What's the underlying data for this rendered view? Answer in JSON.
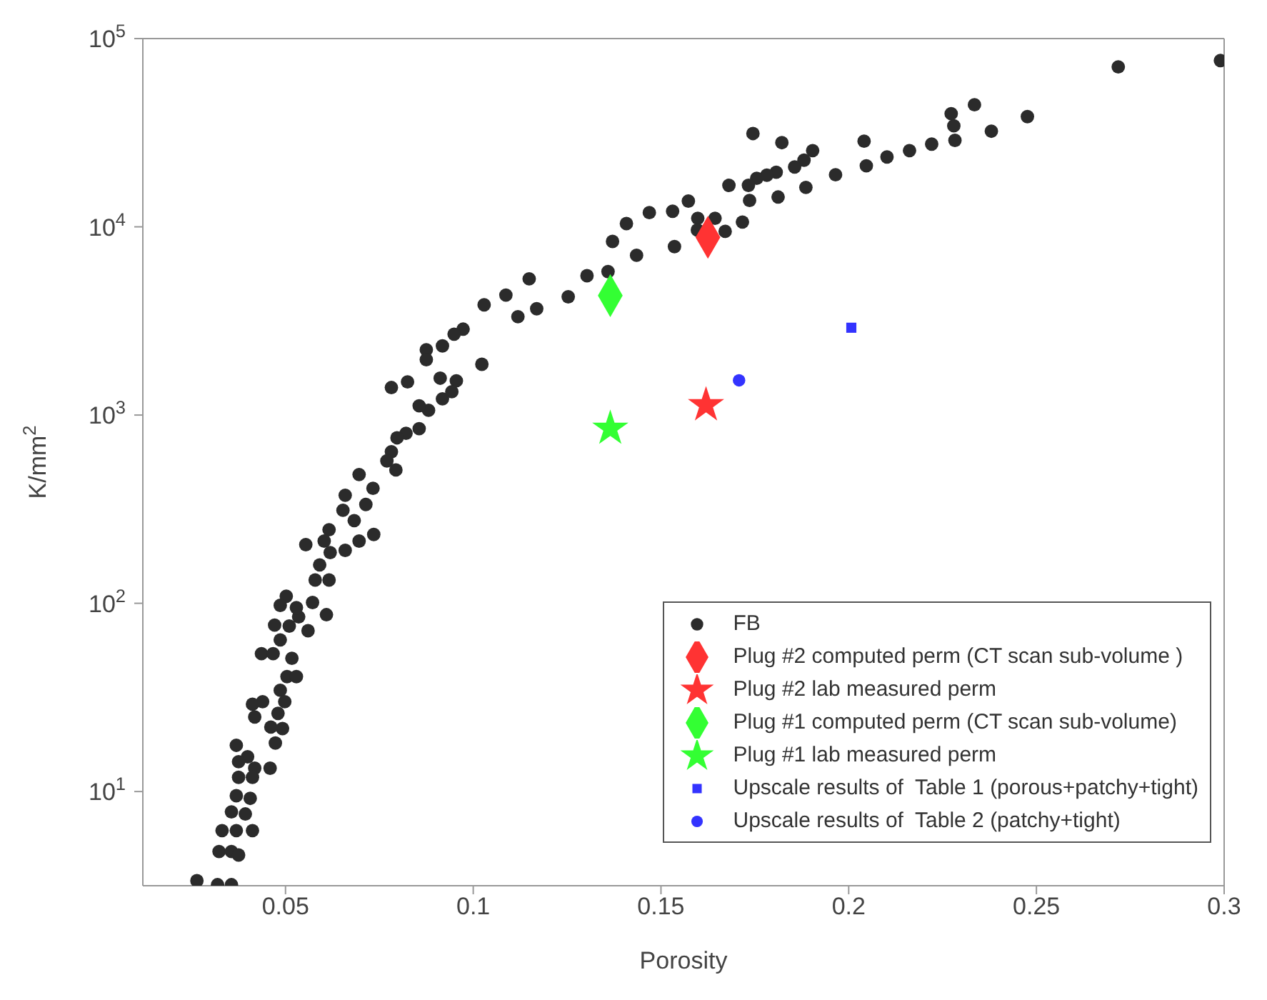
{
  "chart_data": {
    "type": "scatter",
    "xlabel": "Porosity",
    "ylabel": "K/mm$^{2}$",
    "log": "y",
    "xlim": [
      0.012,
      0.3
    ],
    "xticks": [
      0.05,
      0.1,
      0.15,
      0.2,
      0.25,
      0.3
    ],
    "ylim": [
      3.16,
      100000
    ],
    "yticks": [
      {
        "value": 10,
        "label": "10$^{1}$"
      },
      {
        "value": 100,
        "label": "10$^{2}$"
      },
      {
        "value": 1000,
        "label": "10$^{3}$"
      },
      {
        "value": 10000,
        "label": "10$^{4}$"
      },
      {
        "value": 100000,
        "label": "10$^{5}$"
      }
    ],
    "grid": false,
    "legend": "bottom right",
    "series": [
      {
        "name": "FB",
        "color": "#2b2b2b",
        "marker": "circle",
        "x": [
          0.2718,
          0.299,
          0.2335,
          0.2273,
          0.228,
          0.2283,
          0.2476,
          0.238,
          0.2221,
          0.2162,
          0.2102,
          0.2041,
          0.2047,
          0.1965,
          0.1886,
          0.1904,
          0.1881,
          0.1856,
          0.1807,
          0.1782,
          0.1755,
          0.1733,
          0.1736,
          0.1812,
          0.1822,
          0.1745,
          0.1681,
          0.1717,
          0.1671,
          0.1644,
          0.1598,
          0.1597,
          0.1573,
          0.1531,
          0.1536,
          0.1469,
          0.1435,
          0.1408,
          0.1371,
          0.1359,
          0.1303,
          0.1253,
          0.1149,
          0.1169,
          0.1119,
          0.1087,
          0.1029,
          0.1023,
          0.0973,
          0.0949,
          0.0918,
          0.0875,
          0.0875,
          0.0912,
          0.0955,
          0.0825,
          0.0782,
          0.0943,
          0.0918,
          0.0881,
          0.0856,
          0.0856,
          0.0821,
          0.0797,
          0.0782,
          0.077,
          0.0794,
          0.0696,
          0.0659,
          0.0733,
          0.0714,
          0.0653,
          0.0683,
          0.0696,
          0.0735,
          0.0659,
          0.0616,
          0.0603,
          0.0554,
          0.0619,
          0.0591,
          0.0579,
          0.0616,
          0.0572,
          0.0609,
          0.056,
          0.0535,
          0.0502,
          0.0486,
          0.0529,
          0.0471,
          0.051,
          0.0486,
          0.0436,
          0.0467,
          0.0517,
          0.0504,
          0.0529,
          0.0486,
          0.0498,
          0.0412,
          0.0439,
          0.0418,
          0.048,
          0.0461,
          0.0492,
          0.0473,
          0.0369,
          0.0399,
          0.0375,
          0.0418,
          0.0459,
          0.0375,
          0.0412,
          0.0369,
          0.0406,
          0.0356,
          0.0393,
          0.0331,
          0.0369,
          0.0412,
          0.0323,
          0.0356,
          0.0375,
          0.0264,
          0.0319,
          0.0356
        ],
        "values": [
          70700,
          76400,
          44500,
          39900,
          34400,
          28800,
          38500,
          32200,
          27500,
          25400,
          23500,
          28500,
          21100,
          18900,
          16200,
          25400,
          22600,
          20800,
          19500,
          18800,
          18100,
          16600,
          13800,
          14400,
          28000,
          31300,
          16600,
          10600,
          9460,
          11100,
          11100,
          9620,
          13700,
          12100,
          7850,
          11900,
          7060,
          10400,
          8360,
          5780,
          5500,
          4250,
          5290,
          3670,
          3330,
          4340,
          3850,
          1860,
          2860,
          2690,
          2330,
          2220,
          1970,
          1570,
          1520,
          1500,
          1400,
          1330,
          1220,
          1060,
          1120,
          847,
          800,
          757,
          638,
          571,
          511,
          483,
          375,
          408,
          335,
          312,
          275,
          214,
          232,
          191,
          246,
          214,
          205,
          186,
          160,
          133,
          133,
          101,
          87,
          71.5,
          84.7,
          109,
          97.5,
          94.8,
          76.6,
          75.7,
          63.9,
          54,
          54,
          51,
          40.8,
          40.8,
          34.5,
          30,
          29.1,
          30,
          24.9,
          26,
          22,
          21.6,
          18.1,
          17.6,
          15.3,
          14.4,
          13.3,
          13.3,
          11.9,
          11.9,
          9.5,
          9.2,
          7.8,
          7.6,
          6.2,
          6.2,
          6.2,
          4.8,
          4.8,
          4.6,
          3.36,
          3.2,
          3.2
        ]
      },
      {
        "name": "Plug #2 computed perm (CT scan sub-volume )",
        "color": "#ff3333",
        "marker": "diamond",
        "x": [
          0.1625
        ],
        "values": [
          8790
        ]
      },
      {
        "name": "Plug #2 lab measured perm",
        "color": "#ff3333",
        "marker": "star",
        "x": [
          0.162
        ],
        "values": [
          1130
        ]
      },
      {
        "name": "Plug #1 computed perm (CT scan sub-volume)",
        "color": "#33ff33",
        "marker": "diamond",
        "x": [
          0.1365
        ],
        "values": [
          4310
        ]
      },
      {
        "name": "Plug #1 lab measured perm",
        "color": "#33ff33",
        "marker": "star",
        "x": [
          0.1365
        ],
        "values": [
          848
        ]
      },
      {
        "name": "Upscale results of  Table 1 (porous+patchy+tight)",
        "color": "#3333ff",
        "marker": "square",
        "x": [
          0.2007
        ],
        "values": [
          2910
        ]
      },
      {
        "name": "Upscale results of  Table 2 (patchy+tight)",
        "color": "#3333ff",
        "marker": "circle",
        "x": [
          0.1708
        ],
        "values": [
          1530
        ]
      }
    ]
  }
}
